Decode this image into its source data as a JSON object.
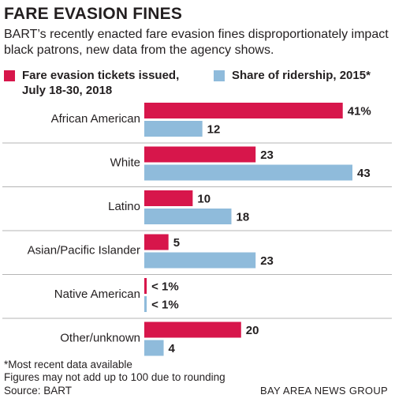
{
  "header": {
    "title": "FARE EVASION FINES",
    "subtitle": "BART’s recently enacted fare evasion fines disproportionately impact black patrons, new data from the agency shows."
  },
  "colors": {
    "tickets": "#d7164b",
    "ridership": "#8fbbdb",
    "divider": "#b5b5b5"
  },
  "chart_data": {
    "type": "bar",
    "orientation": "horizontal",
    "categories": [
      "African American",
      "White",
      "Latino",
      "Asian/Pacific Islander",
      "Native American",
      "Other/unknown"
    ],
    "series": [
      {
        "name": "Fare evasion tickets issued, July 18-30, 2018",
        "values": [
          41,
          23,
          10,
          5,
          0.5,
          20
        ],
        "labels": [
          "41%",
          "23",
          "10",
          "5",
          "< 1%",
          "20"
        ]
      },
      {
        "name": "Share of ridership, 2015*",
        "values": [
          12,
          43,
          18,
          23,
          0.5,
          4
        ],
        "labels": [
          "12",
          "43",
          "18",
          "23",
          "< 1%",
          "4"
        ]
      }
    ],
    "units": "percent",
    "xlim": [
      0,
      43
    ],
    "legend_position": "top",
    "grid": false
  },
  "footer": {
    "notes": [
      "*Most recent data available",
      "Figures may not add up to 100 due to rounding"
    ],
    "source": "Source: BART",
    "credit": "BAY AREA NEWS GROUP"
  }
}
